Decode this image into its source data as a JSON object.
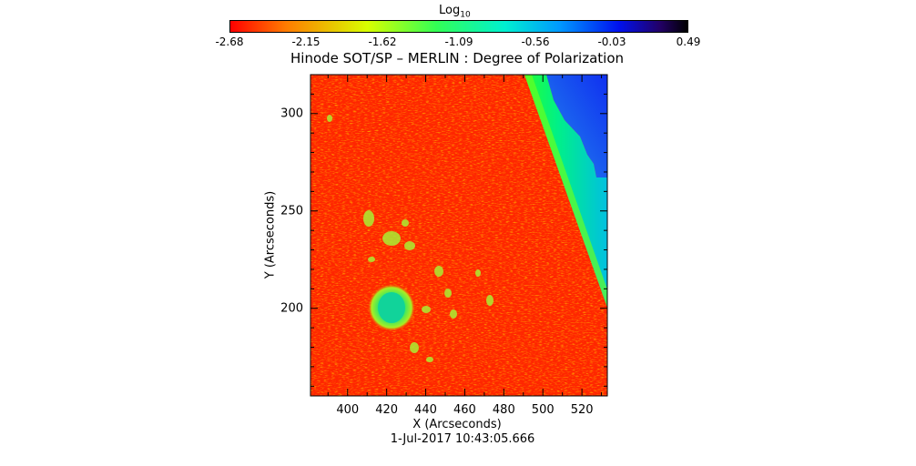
{
  "chart_data": {
    "type": "heatmap",
    "title": "Hinode SOT/SP – MERLIN : Degree of Polarization",
    "xlabel": "X (Arcseconds)",
    "ylabel": "Y (Arcseconds)",
    "timestamp": "1-Jul-2017 10:43:05.666",
    "xlim": [
      381,
      533
    ],
    "ylim": [
      155,
      320
    ],
    "x_ticks": [
      400,
      420,
      440,
      460,
      480,
      500,
      520
    ],
    "y_ticks": [
      200,
      250,
      300
    ],
    "colorbar": {
      "label_base": "Log",
      "label_sub": "10",
      "scale": "log",
      "colormap": "rainbow-reversed",
      "range": [
        -2.68,
        0.49
      ],
      "ticks": [
        "-2.68",
        "-2.15",
        "-1.62",
        "-1.09",
        "-0.56",
        "-0.03",
        "0.49"
      ]
    },
    "colors": {
      "background_red": "#ff2200",
      "limb_green": "#00ff66",
      "off_disk_blue": "#0066ff",
      "spot_green": "#33dd66"
    }
  }
}
